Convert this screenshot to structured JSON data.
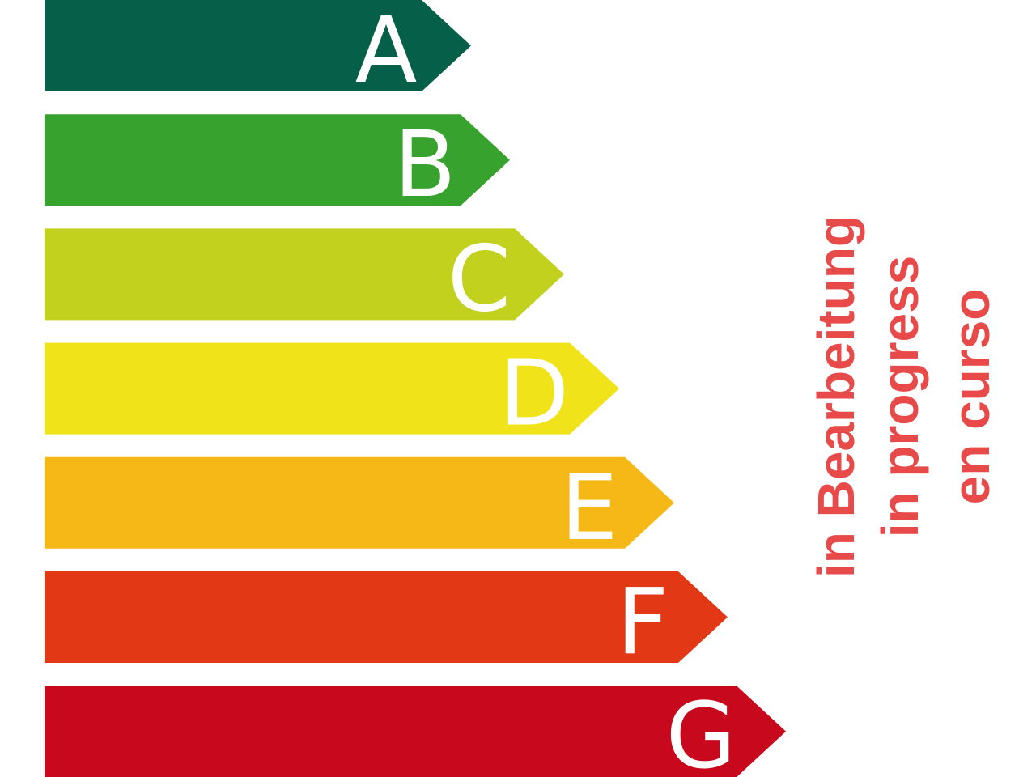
{
  "energy_classes": [
    {
      "label": "A",
      "color": "#066049"
    },
    {
      "label": "B",
      "color": "#38a22e"
    },
    {
      "label": "C",
      "color": "#c2d01e"
    },
    {
      "label": "D",
      "color": "#f0e31a"
    },
    {
      "label": "E",
      "color": "#f5b817"
    },
    {
      "label": "F",
      "color": "#e23816"
    },
    {
      "label": "G",
      "color": "#c8081c"
    }
  ],
  "status": {
    "color": "#e84a4a",
    "lines": [
      "in Bearbeitung",
      "in progress",
      "en curso"
    ]
  }
}
